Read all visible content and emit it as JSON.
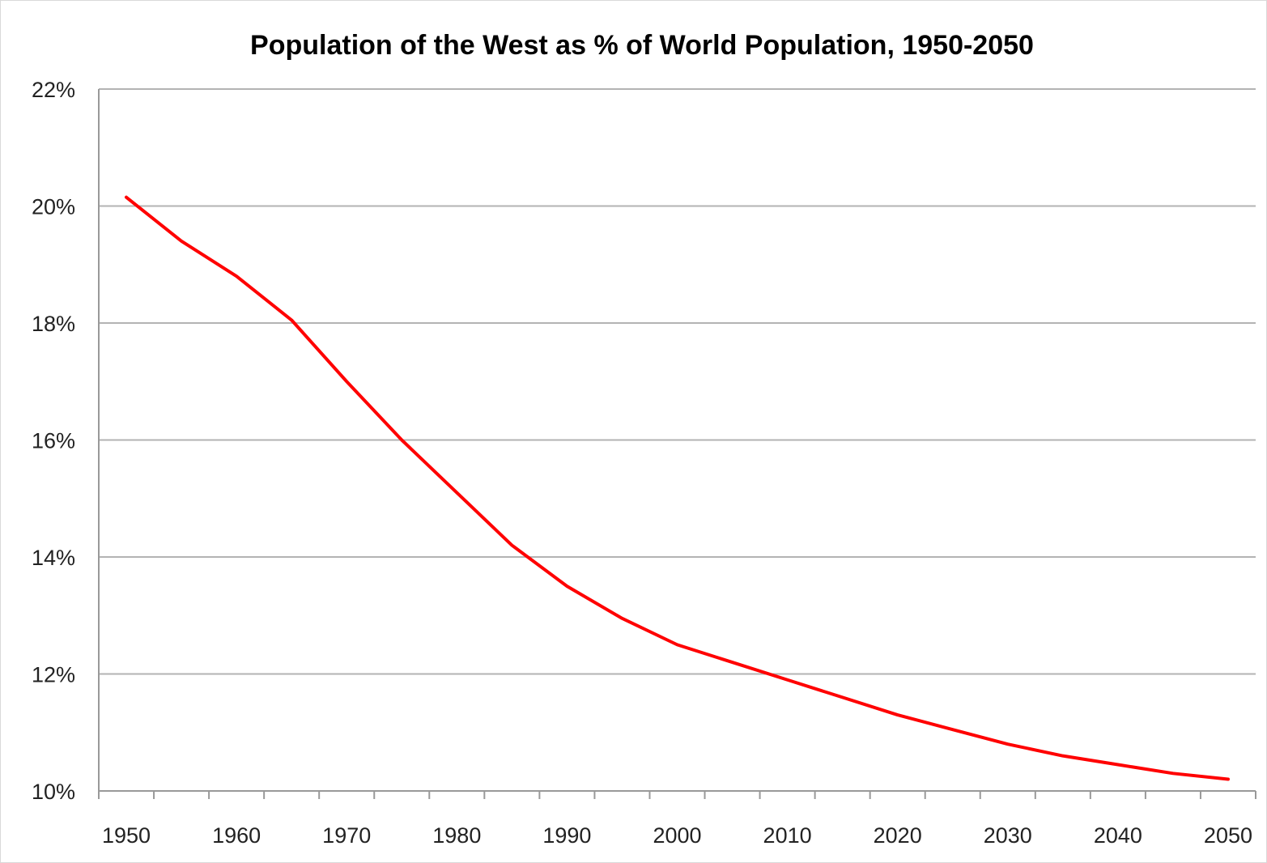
{
  "chart_data": {
    "type": "line",
    "title": "Population of the West as % of World Population, 1950-2050",
    "xlabel": "",
    "ylabel": "",
    "xlim": [
      1947.5,
      2052.5
    ],
    "ylim": [
      10,
      22
    ],
    "x_ticks": [
      1950,
      1960,
      1970,
      1980,
      1990,
      2000,
      2010,
      2020,
      2030,
      2040,
      2050
    ],
    "x_tick_labels": [
      "1950",
      "1960",
      "1970",
      "1980",
      "1990",
      "2000",
      "2010",
      "2020",
      "2030",
      "2040",
      "2050"
    ],
    "y_ticks": [
      10,
      12,
      14,
      16,
      18,
      20,
      22
    ],
    "y_tick_labels": [
      "10%",
      "12%",
      "14%",
      "16%",
      "18%",
      "20%",
      "22%"
    ],
    "grid": "horizontal",
    "legend": "none",
    "line_color": "#ff0000",
    "series": [
      {
        "x": [
          1950,
          1955,
          1960,
          1965,
          1970,
          1975,
          1980,
          1985,
          1990,
          1995,
          2000,
          2005,
          2010,
          2015,
          2020,
          2025,
          2030,
          2035,
          2040,
          2045,
          2050
        ],
        "values": [
          20.15,
          19.4,
          18.8,
          18.05,
          17.0,
          16.0,
          15.1,
          14.2,
          13.5,
          12.95,
          12.5,
          12.2,
          11.9,
          11.6,
          11.3,
          11.05,
          10.8,
          10.6,
          10.45,
          10.3,
          10.2
        ]
      }
    ]
  }
}
